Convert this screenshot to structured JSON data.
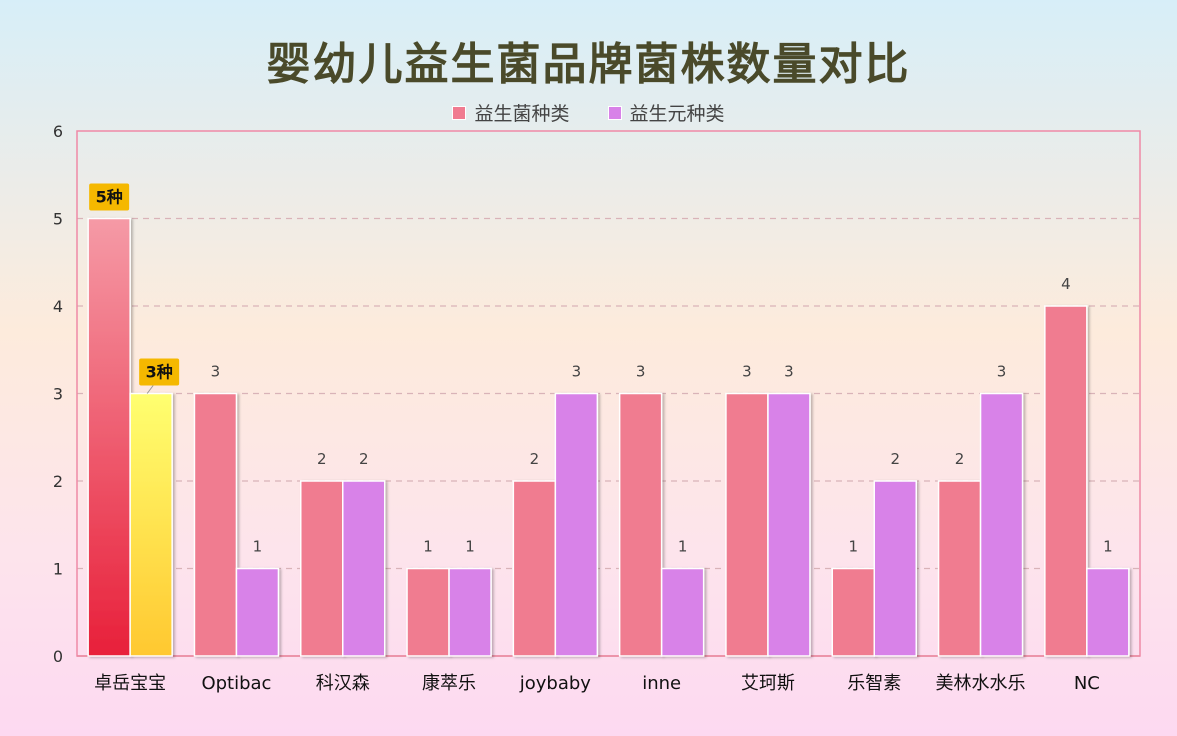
{
  "chart_data": {
    "type": "bar",
    "title": "婴幼儿益生菌品牌菌株数量对比",
    "categories": [
      "卓岳宝宝",
      "Optibac",
      "科汉森",
      "康萃乐",
      "joybaby",
      "inne",
      "艾珂斯",
      "乐智素",
      "美林水水乐",
      "NC"
    ],
    "series": [
      {
        "name": "益生菌种类",
        "values": [
          5,
          3,
          2,
          1,
          2,
          3,
          3,
          1,
          2,
          4
        ],
        "color": "#f07b90"
      },
      {
        "name": "益生元种类",
        "values": [
          3,
          1,
          2,
          1,
          3,
          1,
          3,
          2,
          3,
          1
        ],
        "color": "#d882e8"
      }
    ],
    "highlight": {
      "category": "卓岳宝宝",
      "labels": [
        "5种",
        "3种"
      ],
      "badge_color": "#f5b800",
      "series_gradients": [
        [
          "#f59aa6",
          "#e8203a"
        ],
        [
          "#ffff70",
          "#ffc830"
        ]
      ]
    },
    "ylim": [
      0,
      6
    ],
    "yticks": [
      0,
      1,
      2,
      3,
      4,
      5,
      6
    ],
    "xlabel": "",
    "ylabel": "",
    "grid": true,
    "legend_position": "top-center",
    "plot_border_color": "#ef8aa6",
    "grid_color": "#d9b3b8"
  }
}
